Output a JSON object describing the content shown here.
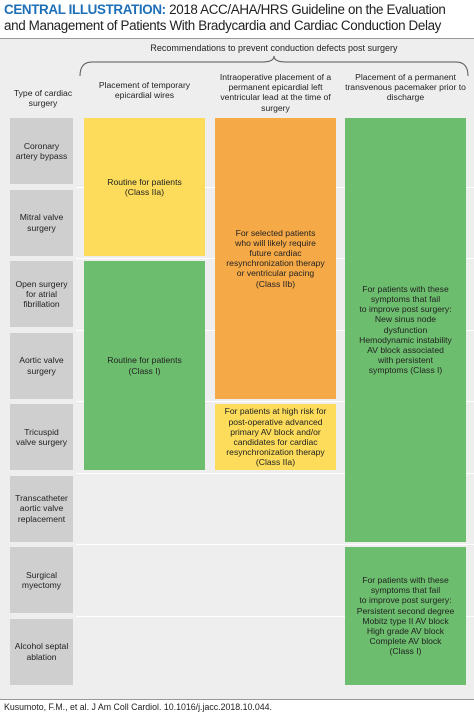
{
  "header": {
    "label": "CENTRAL ILLUSTRATION:",
    "title": "2018 ACC/AHA/HRS Guideline on the Evaluation and Management of Patients With Bradycardia and Cardiac Conduction Delay"
  },
  "group_label": "Recommendations to prevent conduction defects post surgery",
  "columns": [
    "Type of cardiac surgery",
    "Placement of temporary epicardial wires",
    "Intraoperative placement of a permanent epicardial left ventricular lead at the time of surgery",
    "Placement of a permanent transvenous pacemaker prior to discharge"
  ],
  "rows": [
    "Coronary artery bypass",
    "Mitral valve surgery",
    "Open surgery for atrial fibrillation",
    "Aortic valve surgery",
    "Tricuspid valve surgery",
    "Transcatheter aortic valve replacement",
    "Surgical myectomy",
    "Alcohol septal ablation"
  ],
  "cells": [
    {
      "lines": [
        "Routine for patients",
        "(Class IIa)"
      ]
    },
    {
      "lines": [
        "Routine for patients",
        "(Class I)"
      ]
    },
    {
      "lines": [
        "For selected patients",
        "who will likely require",
        "future cardiac",
        "resynchronization therapy",
        "or ventricular pacing",
        "(Class IIb)"
      ]
    },
    {
      "lines": [
        "For patients at high risk for",
        "post-operative advanced",
        "primary AV block and/or",
        "candidates for cardiac",
        "resynchronization therapy",
        "(Class IIa)"
      ]
    },
    {
      "lines": [
        "For patients with these",
        "symptoms that fail",
        "to improve post surgery:",
        "New sinus node",
        "dysfunction",
        "Hemodynamic instability",
        "AV block associated",
        "with persistent",
        "symptoms (Class I)"
      ]
    },
    {
      "lines": [
        "For patients with these",
        "symptoms that fail",
        "to improve post surgery:",
        "Persistent second degree",
        "Mobitz type II AV block",
        "High grade AV block",
        "Complete AV block",
        "(Class I)"
      ]
    }
  ],
  "footer": "Kusumoto, F.M., et al. J Am Coll Cardiol. 10.1016/j.jacc.2018.10.044."
}
